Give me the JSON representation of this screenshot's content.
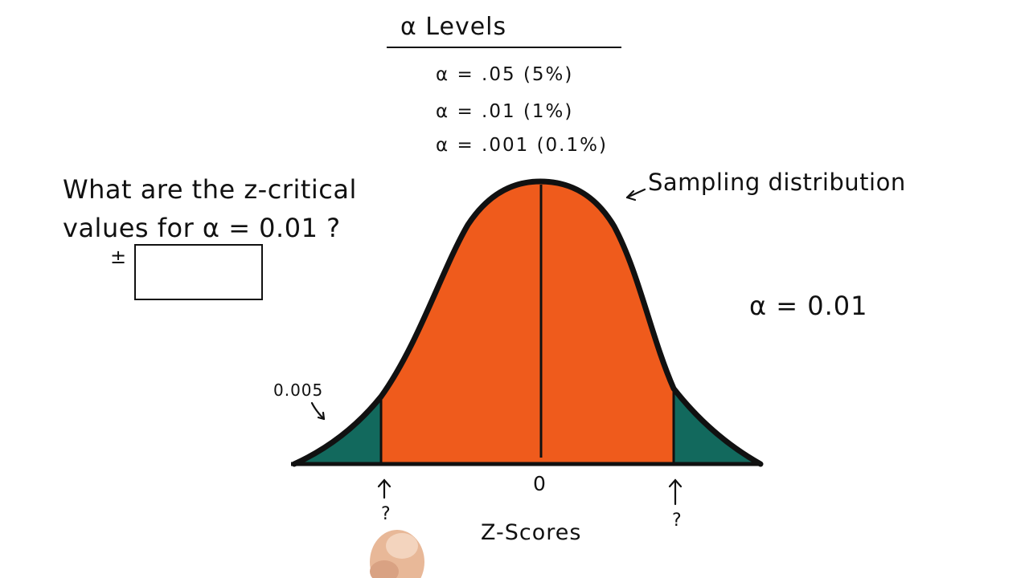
{
  "heading": {
    "title": "α Levels",
    "levels": [
      "α = .05 (5%)",
      "α = .01 (1%)",
      "α = .001 (0.1%)"
    ]
  },
  "question": {
    "line1": "What are the z-critical",
    "line2": "values for α = 0.01 ?",
    "plus_minus": "±",
    "answer_value": ""
  },
  "diagram": {
    "curve_label": "Sampling distribution",
    "alpha_label": "α = 0.01",
    "tail_area_label": "0.005",
    "center_label": "0",
    "critical_left_label": "?",
    "critical_right_label": "?",
    "axis_label": "Z-Scores",
    "colors": {
      "body": "#EF5B1C",
      "tails": "#12695D",
      "outline": "#111111"
    }
  }
}
